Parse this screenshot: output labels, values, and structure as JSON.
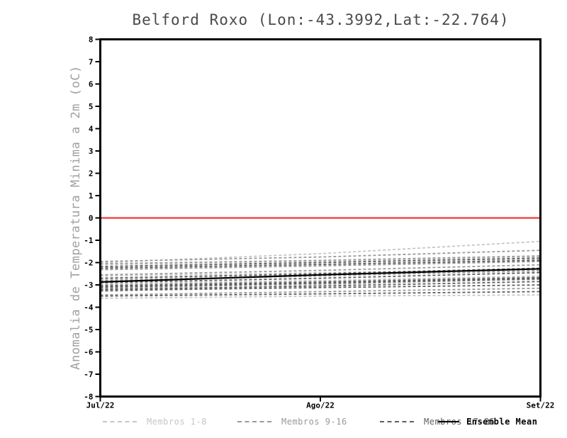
{
  "page": {
    "background": "#ffffff"
  },
  "chart_data": {
    "type": "line",
    "title": "Belford Roxo (Lon:-43.3992,Lat:-22.764)",
    "ylabel": "Anomalia de Temperatura Minima a 2m (oC)",
    "xlabel": "",
    "x_categories": [
      "Jul/22",
      "Ago/22",
      "Set/22"
    ],
    "ylim": [
      -8,
      8
    ],
    "yticks": [
      8,
      7,
      6,
      5,
      4,
      3,
      2,
      1,
      0,
      -1,
      -2,
      -3,
      -4,
      -5,
      -6,
      -7,
      -8
    ],
    "grid": "off",
    "legend_position": "bottom",
    "axis_color": "#000000",
    "zero_line": {
      "value": 0,
      "color": "#f04b4b"
    },
    "groups": [
      {
        "name": "Membros 1-8",
        "color": "#c6c6c6",
        "style": "dashed"
      },
      {
        "name": "Membros 9-16",
        "color": "#9a9a9a",
        "style": "dashed"
      },
      {
        "name": "Membros 17-25",
        "color": "#5e5e5e",
        "style": "dashed"
      },
      {
        "name": "Ensemble Mean",
        "color": "#000000",
        "style": "solid"
      }
    ],
    "series": [
      {
        "group": 0,
        "values": [
          -2.0,
          -1.6,
          -1.05
        ]
      },
      {
        "group": 0,
        "values": [
          -2.3,
          -2.1,
          -1.85
        ]
      },
      {
        "group": 0,
        "values": [
          -2.6,
          -2.45,
          -2.3
        ]
      },
      {
        "group": 0,
        "values": [
          -2.95,
          -2.8,
          -2.6
        ]
      },
      {
        "group": 0,
        "values": [
          -3.3,
          -3.0,
          -2.7
        ]
      },
      {
        "group": 0,
        "values": [
          -3.6,
          -3.5,
          -3.45
        ]
      },
      {
        "group": 0,
        "values": [
          -2.1,
          -1.95,
          -1.75
        ]
      },
      {
        "group": 0,
        "values": [
          -2.75,
          -2.55,
          -2.4
        ]
      },
      {
        "group": 1,
        "values": [
          -1.95,
          -1.75,
          -1.45
        ]
      },
      {
        "group": 1,
        "values": [
          -2.05,
          -1.9,
          -1.7
        ]
      },
      {
        "group": 1,
        "values": [
          -2.32,
          -2.15,
          -1.95
        ]
      },
      {
        "group": 1,
        "values": [
          -2.55,
          -2.35,
          -2.1
        ]
      },
      {
        "group": 1,
        "values": [
          -2.8,
          -2.6,
          -2.35
        ]
      },
      {
        "group": 1,
        "values": [
          -3.0,
          -2.85,
          -2.65
        ]
      },
      {
        "group": 1,
        "values": [
          -3.15,
          -2.95,
          -2.75
        ]
      },
      {
        "group": 1,
        "values": [
          -3.45,
          -3.3,
          -3.15
        ]
      },
      {
        "group": 2,
        "values": [
          -2.18,
          -2.0,
          -1.8
        ]
      },
      {
        "group": 2,
        "values": [
          -2.25,
          -2.08,
          -1.9
        ]
      },
      {
        "group": 2,
        "values": [
          -2.7,
          -2.5,
          -2.25
        ]
      },
      {
        "group": 2,
        "values": [
          -2.9,
          -2.7,
          -2.45
        ]
      },
      {
        "group": 2,
        "values": [
          -3.05,
          -2.88,
          -2.68
        ]
      },
      {
        "group": 2,
        "values": [
          -3.1,
          -2.92,
          -2.72
        ]
      },
      {
        "group": 2,
        "values": [
          -3.2,
          -3.05,
          -2.85
        ]
      },
      {
        "group": 2,
        "values": [
          -3.25,
          -3.12,
          -3.0
        ]
      },
      {
        "group": 2,
        "values": [
          -3.5,
          -3.4,
          -3.3
        ]
      }
    ],
    "ensemble_mean": {
      "group": 3,
      "values": [
        -2.87,
        -2.55,
        -2.28
      ]
    }
  }
}
